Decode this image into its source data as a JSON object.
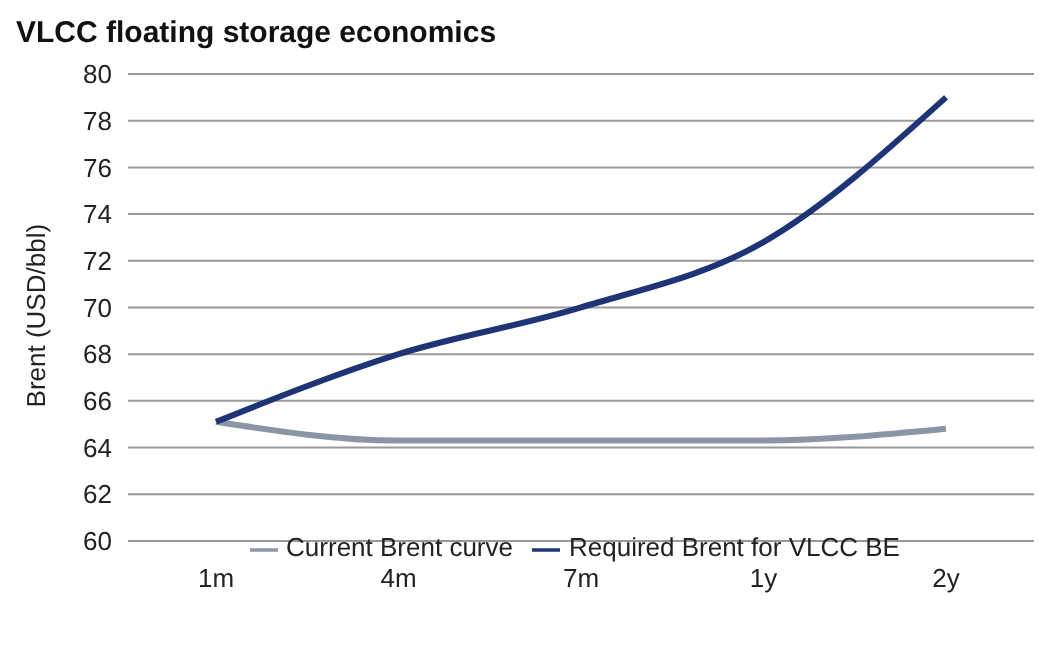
{
  "chart_data": {
    "type": "line",
    "title": "VLCC floating storage economics",
    "ylabel": "Brent (USD/bbl)",
    "categories": [
      "1m",
      "4m",
      "7m",
      "1y",
      "2y"
    ],
    "series": [
      {
        "name": "Current Brent curve",
        "color": "#8a96a6",
        "values": [
          65.1,
          64.3,
          64.3,
          64.3,
          64.8
        ]
      },
      {
        "name": "Required Brent for VLCC BE",
        "color": "#1f3477",
        "values": [
          65.1,
          68.0,
          70.0,
          72.8,
          79.0
        ]
      }
    ],
    "ylim": [
      60,
      80
    ],
    "yticks": [
      60,
      62,
      64,
      66,
      68,
      70,
      72,
      74,
      76,
      78,
      80
    ],
    "grid": "y",
    "legend": "bottom",
    "marker": "none",
    "line_style": "solid"
  }
}
